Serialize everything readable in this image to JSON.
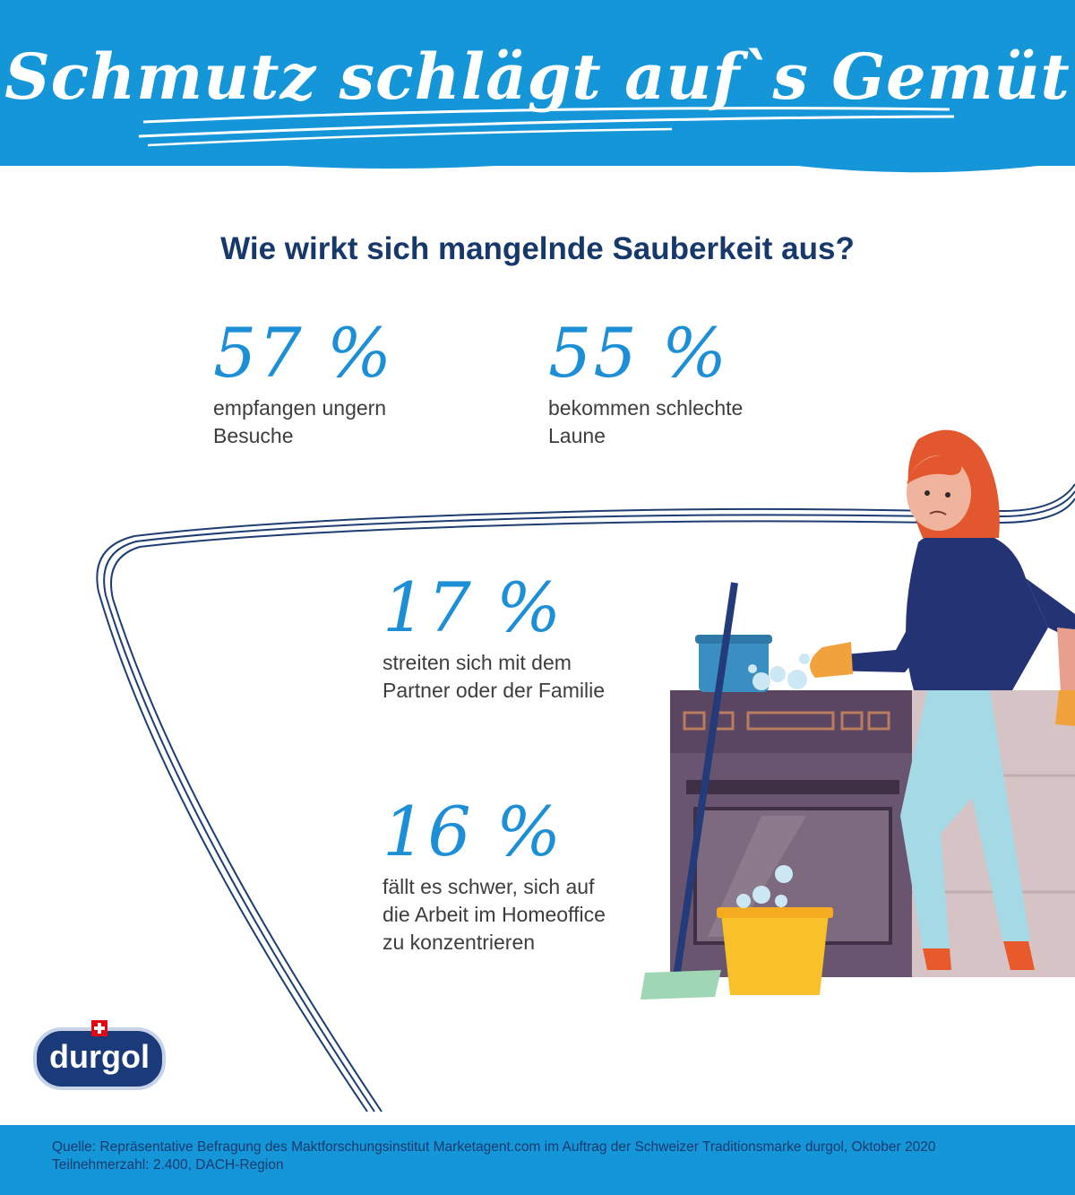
{
  "header": {
    "title": "Schmutz schlägt auf`s Gemüt"
  },
  "question": "Wie wirkt sich mangelnde Sauberkeit aus?",
  "stats": [
    {
      "value": "57 %",
      "text": "empfangen ungern\nBesuche"
    },
    {
      "value": "55 %",
      "text": "bekommen schlechte\nLaune"
    },
    {
      "value": "17 %",
      "text": "streiten sich mit dem\nPartner oder der Familie"
    },
    {
      "value": "16 %",
      "text": "fällt es schwer, sich auf\ndie Arbeit im Homeoffice\nzu konzentrieren"
    }
  ],
  "logo": {
    "text": "durgol",
    "registered": "®"
  },
  "footer": {
    "source": "Quelle: Repräsentative Befragung des Maktforschungsinstitut Marketagent.com im Auftrag der Schweizer Traditionsmarke durgol, Oktober 2020",
    "participants": "Teilnehmerzahl: 2.400, DACH-Region"
  },
  "colors": {
    "brand_blue": "#1596d8",
    "navy": "#17386b",
    "stat_blue": "#1c8fd6"
  }
}
